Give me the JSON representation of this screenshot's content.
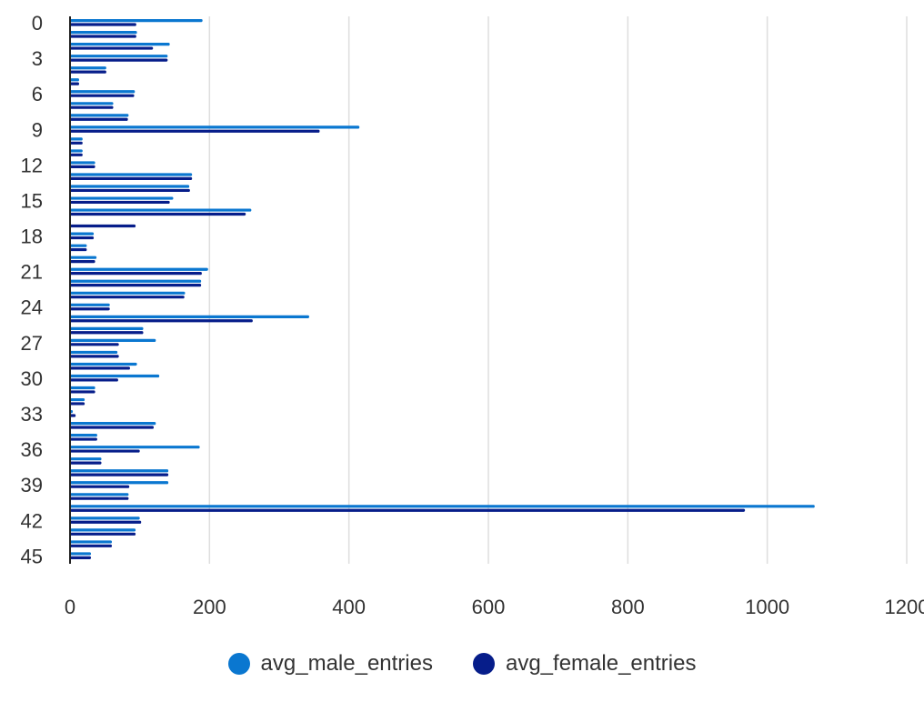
{
  "chart_data": {
    "type": "bar",
    "orientation": "horizontal",
    "title": "",
    "xlabel": "",
    "ylabel": "",
    "xlim": [
      0,
      1200
    ],
    "x_ticks": [
      0,
      200,
      400,
      600,
      800,
      1000,
      1200
    ],
    "categories": [
      "0",
      "1",
      "2",
      "3",
      "4",
      "5",
      "6",
      "7",
      "8",
      "9",
      "10",
      "11",
      "12",
      "13",
      "14",
      "15",
      "16",
      "17",
      "18",
      "19",
      "20",
      "21",
      "22",
      "23",
      "24",
      "25",
      "26",
      "27",
      "28",
      "29",
      "30",
      "31",
      "32",
      "33",
      "34",
      "35",
      "36",
      "37",
      "38",
      "39",
      "40",
      "41",
      "42",
      "43",
      "44",
      "45"
    ],
    "category_tick_labels": [
      "0",
      "3",
      "6",
      "9",
      "12",
      "15",
      "18",
      "21",
      "24",
      "27",
      "30",
      "33",
      "36",
      "39",
      "42",
      "45"
    ],
    "series": [
      {
        "name": "avg_male_entries",
        "color": "#0a77d0",
        "values": [
          190,
          96,
          143,
          140,
          52,
          13,
          93,
          62,
          84,
          415,
          18,
          18,
          36,
          175,
          171,
          148,
          260,
          0,
          34,
          24,
          38,
          198,
          188,
          165,
          57,
          343,
          105,
          123,
          68,
          96,
          128,
          36,
          21,
          4,
          123,
          39,
          186,
          45,
          141,
          141,
          84,
          1068,
          100,
          94,
          60,
          30
        ]
      },
      {
        "name": "avg_female_entries",
        "color": "#061d8a",
        "values": [
          95,
          95,
          119,
          140,
          52,
          13,
          92,
          62,
          83,
          358,
          18,
          18,
          36,
          175,
          172,
          143,
          252,
          94,
          34,
          24,
          36,
          189,
          188,
          164,
          57,
          262,
          105,
          70,
          70,
          86,
          69,
          36,
          21,
          8,
          120,
          39,
          100,
          45,
          141,
          85,
          84,
          968,
          102,
          94,
          60,
          30
        ]
      }
    ],
    "grid": true,
    "legend_position": "bottom"
  }
}
